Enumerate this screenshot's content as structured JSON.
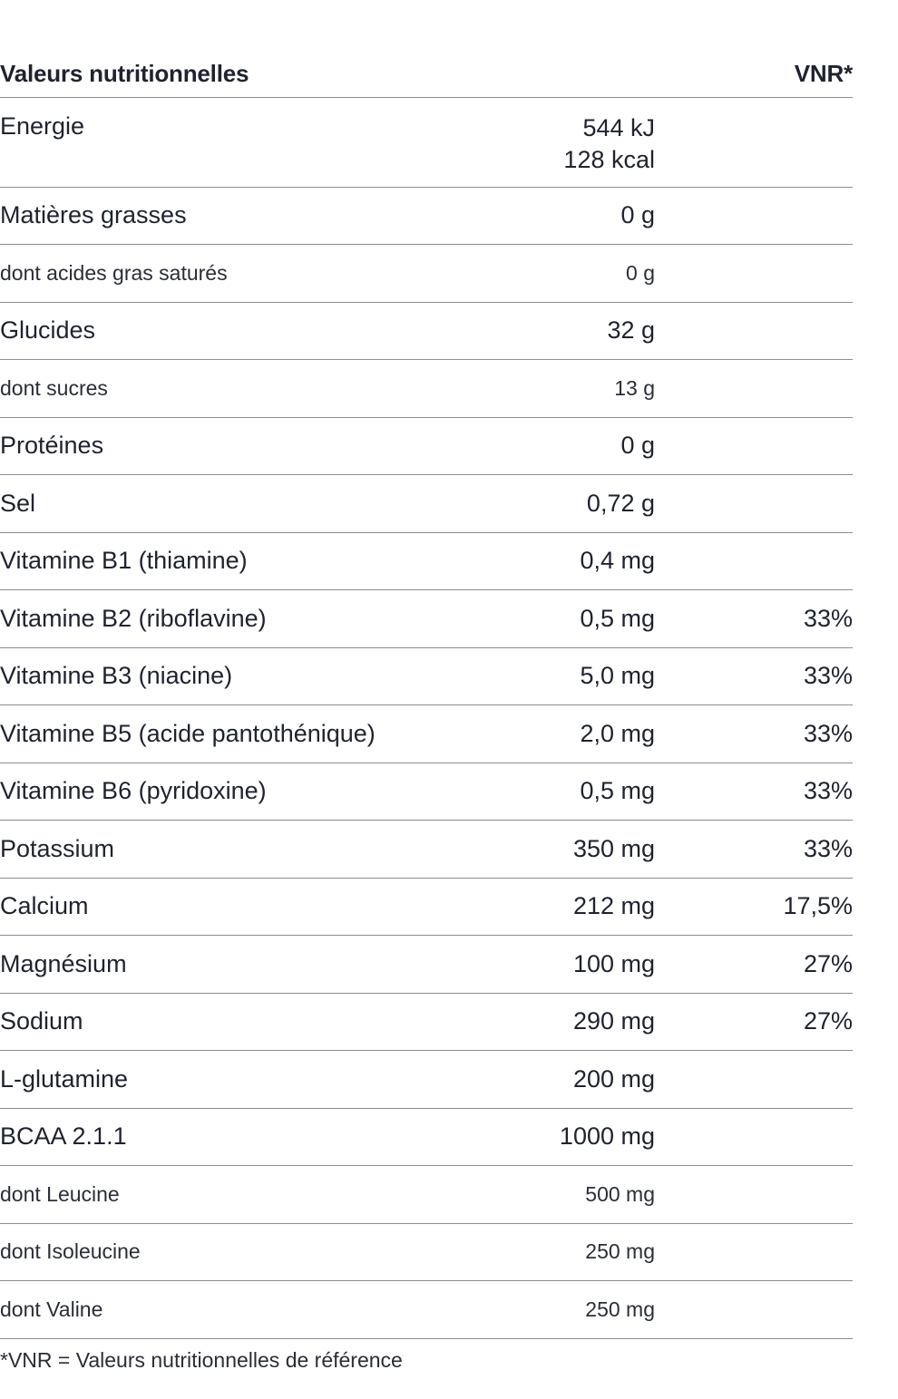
{
  "header": {
    "title": "Valeurs nutritionnelles",
    "vnr_label": "VNR*"
  },
  "rows": [
    {
      "name": "Energie",
      "values": [
        "544 kJ",
        "128 kcal"
      ],
      "vnr": ""
    },
    {
      "name": "Matières grasses",
      "value": "0 g",
      "vnr": ""
    },
    {
      "name": "dont acides gras saturés",
      "value": "0 g",
      "vnr": ""
    },
    {
      "name": "Glucides",
      "value": "32 g",
      "vnr": ""
    },
    {
      "name": "dont sucres",
      "value": "13 g",
      "vnr": ""
    },
    {
      "name": "Protéines",
      "value": "0 g",
      "vnr": ""
    },
    {
      "name": "Sel",
      "value": "0,72 g",
      "vnr": ""
    },
    {
      "name": "Vitamine B1 (thiamine)",
      "value": "0,4 mg",
      "vnr": ""
    },
    {
      "name": "Vitamine B2 (riboflavine)",
      "value": "0,5 mg",
      "vnr": "33%"
    },
    {
      "name": "Vitamine B3 (niacine)",
      "value": "5,0 mg",
      "vnr": "33%"
    },
    {
      "name": "Vitamine B5 (acide pantothénique)",
      "value": "2,0 mg",
      "vnr": "33%"
    },
    {
      "name": "Vitamine B6 (pyridoxine)",
      "value": "0,5 mg",
      "vnr": "33%"
    },
    {
      "name": "Potassium",
      "value": "350 mg",
      "vnr": "33%"
    },
    {
      "name": "Calcium",
      "value": "212 mg",
      "vnr": "17,5%"
    },
    {
      "name": "Magnésium",
      "value": "100 mg",
      "vnr": "27%"
    },
    {
      "name": "Sodium",
      "value": "290 mg",
      "vnr": "27%"
    },
    {
      "name": "L-glutamine",
      "value": "200 mg",
      "vnr": ""
    },
    {
      "name": "BCAA 2.1.1",
      "value": "1000 mg",
      "vnr": ""
    },
    {
      "name": "dont Leucine",
      "value": "500 mg",
      "vnr": ""
    },
    {
      "name": "dont Isoleucine",
      "value": "250 mg",
      "vnr": ""
    },
    {
      "name": "dont Valine",
      "value": "250 mg",
      "vnr": ""
    }
  ],
  "footnote": "*VNR = Valeurs nutritionnelles de référence"
}
